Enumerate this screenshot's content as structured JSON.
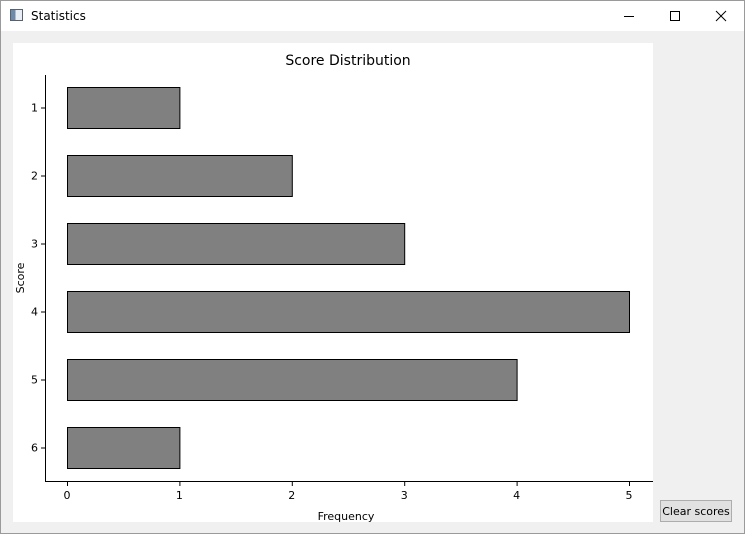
{
  "window": {
    "title": "Statistics",
    "app_icon": "window-app-icon",
    "controls": [
      "minimize-icon",
      "maximize-icon",
      "close-icon"
    ]
  },
  "actions": {
    "clear_label": "Clear scores"
  },
  "chart_data": {
    "type": "bar",
    "orientation": "horizontal",
    "title": "Score Distribution",
    "xlabel": "Frequency",
    "ylabel": "Score",
    "categories": [
      "1",
      "2",
      "3",
      "4",
      "5",
      "6"
    ],
    "values": [
      1,
      2,
      3,
      5,
      4,
      1
    ],
    "xlim": [
      0,
      5
    ],
    "xticks": [
      "0",
      "1",
      "2",
      "3",
      "4",
      "5"
    ],
    "bar_color": "#808080",
    "bar_edge_color": "#000000",
    "grid": false,
    "legend": "none"
  }
}
